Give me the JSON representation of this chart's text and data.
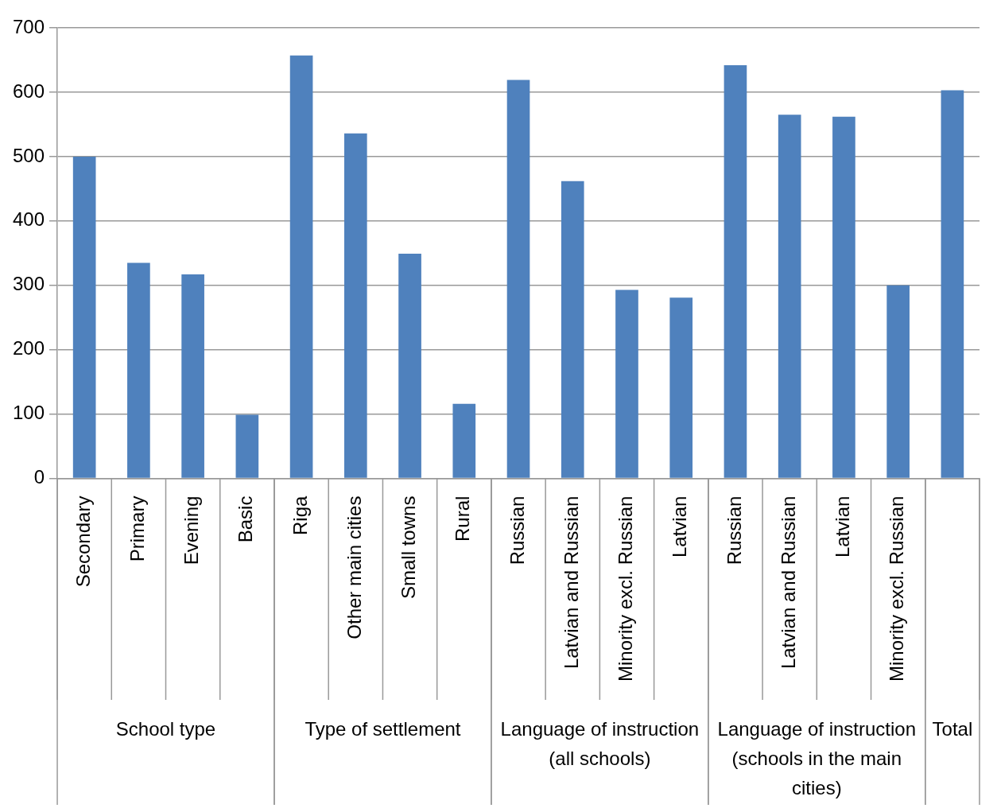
{
  "chart_data": {
    "type": "bar",
    "categories": [
      "Secondary",
      "Primary",
      "Evening",
      "Basic",
      "Riga",
      "Other main cities",
      "Small towns",
      "Rural",
      "Russian",
      "Latvian and Russian",
      "Minority excl. Russian",
      "Latvian",
      "Russian",
      "Latvian and Russian",
      "Latvian",
      "Minority excl. Russian",
      null
    ],
    "values": [
      500,
      335,
      317,
      99,
      657,
      536,
      349,
      116,
      619,
      462,
      293,
      281,
      642,
      565,
      562,
      300,
      603
    ],
    "color": "#4f81bd",
    "ylim": [
      0,
      700
    ],
    "yticks": [
      0,
      100,
      200,
      300,
      400,
      500,
      600,
      700
    ],
    "grid": "y",
    "legend": false,
    "annotations": [
      "School type",
      "Type of settlement",
      "Language of instruction (all schools)",
      "Language of instruction (schools in the main cities)",
      "Total"
    ]
  }
}
